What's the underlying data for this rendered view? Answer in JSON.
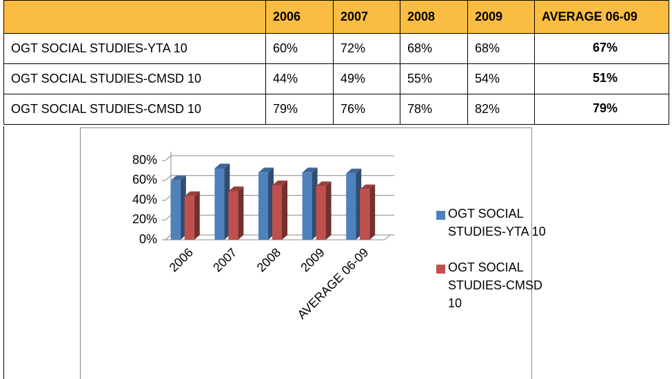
{
  "table": {
    "header": [
      "2006",
      "2007",
      "2008",
      "2009",
      "AVERAGE 06-09"
    ],
    "rows": [
      [
        "OGT SOCIAL STUDIES-YTA 10",
        "60%",
        "72%",
        "68%",
        "68%",
        "67%"
      ],
      [
        "OGT SOCIAL STUDIES-CMSD 10",
        "44%",
        "49%",
        "55%",
        "54%",
        "51%"
      ],
      [
        "OGT SOCIAL STUDIES-CMSD 10",
        "79%",
        "76%",
        "78%",
        "82%",
        "79%"
      ]
    ]
  },
  "chart_data": {
    "type": "bar",
    "categories": [
      "2006",
      "2007",
      "2008",
      "2009",
      "AVERAGE 06-09"
    ],
    "series": [
      {
        "name": "OGT SOCIAL STUDIES-YTA 10",
        "color": "#4f81bd",
        "values": [
          60,
          72,
          68,
          68,
          67
        ]
      },
      {
        "name": "OGT SOCIAL STUDIES-CMSD 10",
        "color": "#c0504d",
        "values": [
          44,
          49,
          55,
          54,
          51
        ]
      }
    ],
    "ylim": [
      0,
      80
    ],
    "yticks": [
      {
        "value": 0,
        "label": "0%"
      },
      {
        "value": 20,
        "label": "20%"
      },
      {
        "value": 40,
        "label": "40%"
      },
      {
        "value": 60,
        "label": "60%"
      },
      {
        "value": 80,
        "label": "80%"
      }
    ],
    "grid": true,
    "legend": "right"
  }
}
